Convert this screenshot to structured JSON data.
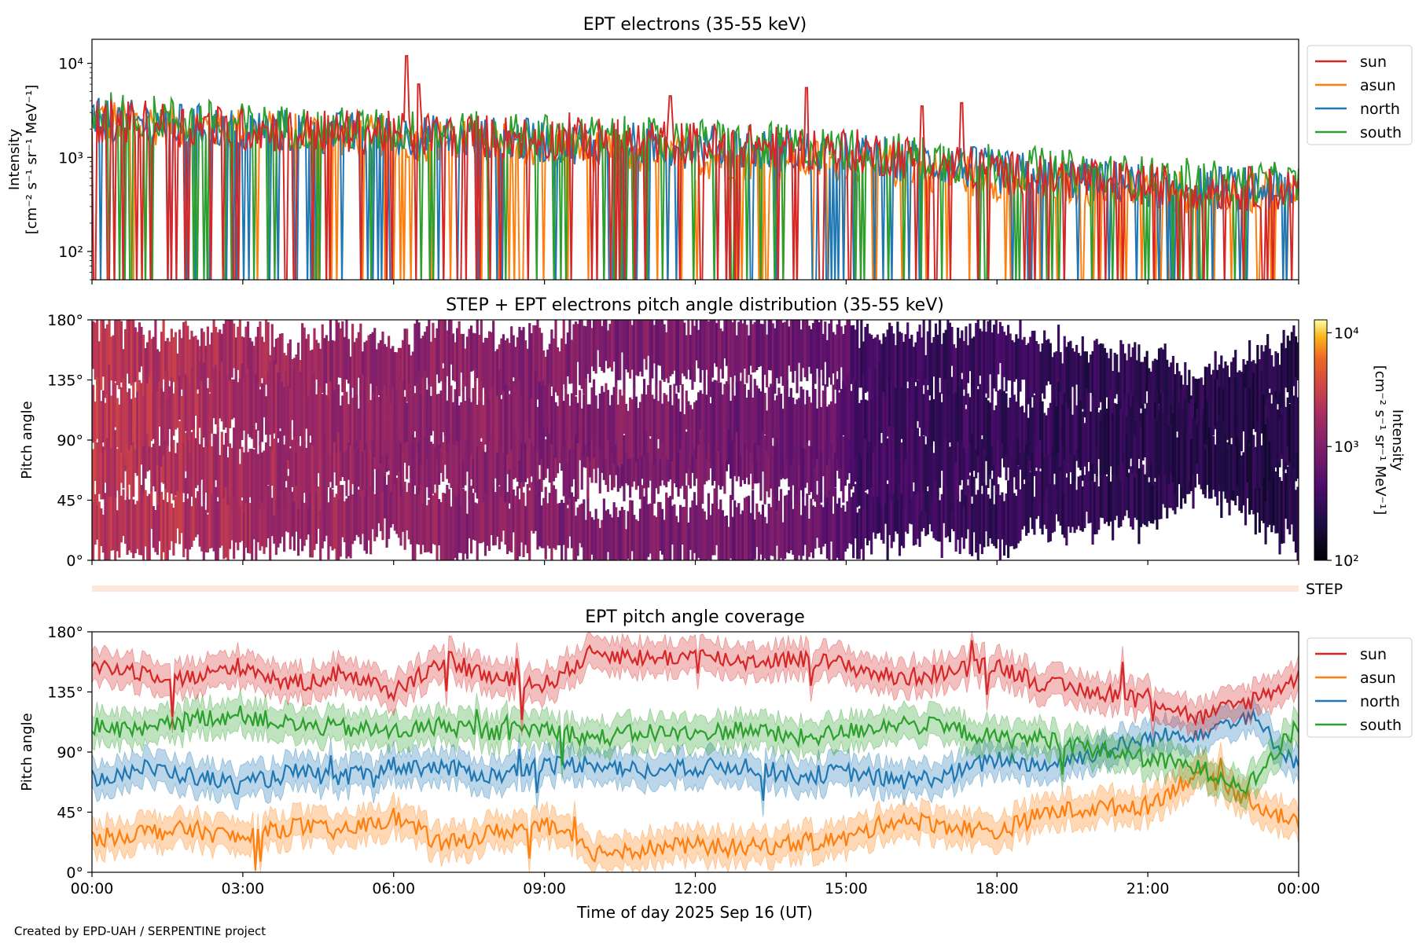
{
  "credit": "Created by EPD-UAH / SERPENTINE project",
  "chart_data": [
    {
      "type": "line",
      "title": "EPT electrons (35-55 keV)",
      "ylabel": [
        "Intensity",
        "[cm⁻² s⁻¹ sr⁻¹ MeV⁻¹]"
      ],
      "yscale": "log",
      "ylim": [
        50,
        18000
      ],
      "yticks": [
        {
          "value": 100,
          "label": "10²"
        },
        {
          "value": 1000,
          "label": "10³"
        },
        {
          "value": 10000,
          "label": "10⁴"
        }
      ],
      "x_range_hours": [
        0,
        24
      ],
      "legend": "outside-right",
      "series": [
        {
          "name": "sun",
          "color": "#d62728",
          "spikes": [
            [
              6.25,
              12000
            ],
            [
              6.5,
              6000
            ],
            [
              11.5,
              4500
            ],
            [
              14.2,
              5500
            ],
            [
              16.5,
              3500
            ],
            [
              17.3,
              3800
            ],
            [
              9.5,
              3000
            ]
          ],
          "envelope": [
            [
              0,
              2500
            ],
            [
              3,
              2000
            ],
            [
              6,
              1800
            ],
            [
              9,
              1600
            ],
            [
              12,
              1400
            ],
            [
              15,
              1200
            ],
            [
              18,
              700
            ],
            [
              21,
              500
            ],
            [
              24,
              450
            ]
          ]
        },
        {
          "name": "asun",
          "color": "#ff7f0e",
          "envelope": [
            [
              0,
              2500
            ],
            [
              3,
              2000
            ],
            [
              6,
              1600
            ],
            [
              9,
              1300
            ],
            [
              12,
              1000
            ],
            [
              15,
              900
            ],
            [
              18,
              600
            ],
            [
              21,
              450
            ],
            [
              24,
              400
            ]
          ]
        },
        {
          "name": "north",
          "color": "#1f77b4",
          "envelope": [
            [
              0,
              2500
            ],
            [
              3,
              2000
            ],
            [
              6,
              1700
            ],
            [
              9,
              1500
            ],
            [
              12,
              1300
            ],
            [
              15,
              1100
            ],
            [
              18,
              700
            ],
            [
              21,
              500
            ],
            [
              24,
              450
            ]
          ]
        },
        {
          "name": "south",
          "color": "#2ca02c",
          "envelope": [
            [
              0,
              3000
            ],
            [
              3,
              2200
            ],
            [
              6,
              1900
            ],
            [
              9,
              1700
            ],
            [
              12,
              1500
            ],
            [
              15,
              1200
            ],
            [
              18,
              800
            ],
            [
              21,
              600
            ],
            [
              24,
              500
            ]
          ]
        }
      ]
    },
    {
      "type": "heatmap",
      "title": "STEP + EPT electrons pitch angle distribution (35-55 keV)",
      "ylabel": "Pitch angle",
      "ylim": [
        0,
        180
      ],
      "yticks": [
        {
          "value": 0,
          "label": "0°"
        },
        {
          "value": 45,
          "label": "45°"
        },
        {
          "value": 90,
          "label": "90°"
        },
        {
          "value": 135,
          "label": "135°"
        },
        {
          "value": 180,
          "label": "180°"
        }
      ],
      "colormap": "inferno",
      "colorbar": {
        "scale": "log",
        "range": [
          100,
          13000
        ],
        "ticks": [
          {
            "value": 100,
            "label": "10²"
          },
          {
            "value": 1000,
            "label": "10³"
          },
          {
            "value": 10000,
            "label": "10⁴"
          }
        ],
        "label": "Intensity\n[cm⁻² s⁻¹ sr⁻¹ MeV⁻¹]"
      },
      "intensity_trend": [
        [
          0,
          2500
        ],
        [
          3,
          1800
        ],
        [
          6,
          1300
        ],
        [
          9,
          1100
        ],
        [
          12,
          900
        ],
        [
          15,
          650
        ],
        [
          15.2,
          380
        ],
        [
          18,
          320
        ],
        [
          21,
          260
        ],
        [
          24,
          230
        ]
      ]
    },
    {
      "type": "heatmap",
      "label": "STEP",
      "color": "#fde8dc"
    },
    {
      "type": "line",
      "title": "EPT pitch angle coverage",
      "ylabel": "Pitch angle",
      "xlabel": "Time of day 2025 Sep 16 (UT)",
      "ylim": [
        0,
        180
      ],
      "yticks": [
        {
          "value": 0,
          "label": "0°"
        },
        {
          "value": 45,
          "label": "45°"
        },
        {
          "value": 90,
          "label": "90°"
        },
        {
          "value": 135,
          "label": "135°"
        },
        {
          "value": 180,
          "label": "180°"
        }
      ],
      "xticks": [
        "00:00",
        "03:00",
        "06:00",
        "09:00",
        "12:00",
        "15:00",
        "18:00",
        "21:00",
        "00:00"
      ],
      "legend": "outside-right",
      "series": [
        {
          "name": "sun",
          "color": "#d62728",
          "x": [
            0,
            1,
            2,
            3,
            4,
            5,
            6,
            7,
            8,
            9,
            10,
            11,
            12,
            13,
            14,
            15,
            16,
            17,
            18,
            19,
            20,
            21,
            22,
            23,
            24
          ],
          "y": [
            155,
            150,
            145,
            155,
            140,
            150,
            135,
            160,
            145,
            140,
            165,
            160,
            162,
            158,
            160,
            155,
            145,
            150,
            155,
            140,
            135,
            132,
            115,
            128,
            145
          ]
        },
        {
          "name": "asun",
          "color": "#ff7f0e",
          "x": [
            0,
            1,
            2,
            3,
            4,
            5,
            6,
            7,
            8,
            9,
            10,
            11,
            12,
            13,
            14,
            15,
            16,
            17,
            18,
            19,
            20,
            21,
            22,
            23,
            24
          ],
          "y": [
            25,
            30,
            32,
            25,
            35,
            30,
            42,
            20,
            30,
            35,
            15,
            18,
            20,
            18,
            22,
            25,
            40,
            35,
            30,
            45,
            48,
            50,
            75,
            55,
            35
          ]
        },
        {
          "name": "north",
          "color": "#1f77b4",
          "x": [
            0,
            1,
            2,
            3,
            4,
            5,
            6,
            7,
            8,
            9,
            10,
            11,
            12,
            13,
            14,
            15,
            16,
            17,
            18,
            19,
            20,
            21,
            22,
            23,
            24
          ],
          "y": [
            70,
            78,
            72,
            65,
            75,
            70,
            80,
            78,
            72,
            80,
            82,
            75,
            78,
            80,
            72,
            75,
            68,
            72,
            85,
            80,
            90,
            100,
            105,
            118,
            80
          ]
        },
        {
          "name": "south",
          "color": "#2ca02c",
          "x": [
            0,
            1,
            2,
            3,
            4,
            5,
            6,
            7,
            8,
            9,
            10,
            11,
            12,
            13,
            14,
            15,
            16,
            17,
            18,
            19,
            20,
            21,
            22,
            23,
            24
          ],
          "y": [
            110,
            105,
            115,
            118,
            110,
            108,
            105,
            110,
            105,
            108,
            100,
            105,
            103,
            108,
            100,
            105,
            112,
            108,
            100,
            100,
            92,
            85,
            78,
            65,
            110
          ]
        }
      ]
    }
  ]
}
